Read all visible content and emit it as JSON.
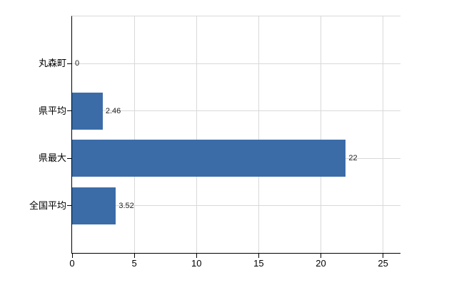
{
  "chart_data": {
    "type": "bar",
    "orientation": "horizontal",
    "title": "",
    "xlabel": "",
    "ylabel": "",
    "categories": [
      "丸森町",
      "県平均",
      "県最大",
      "全国平均"
    ],
    "values": [
      0,
      2.46,
      22,
      3.52
    ],
    "value_labels": [
      "0",
      "2.46",
      "22",
      "3.52"
    ],
    "x_ticks": [
      0,
      5,
      10,
      15,
      20,
      25
    ],
    "x_tick_labels": [
      "0",
      "5",
      "10",
      "15",
      "20",
      "25"
    ],
    "xlim": [
      0,
      26.4
    ],
    "grid": true,
    "legend": false,
    "colors": {
      "bar": "#3b6ca8",
      "grid": "#d9d9d9",
      "axis": "#000000",
      "text": "#000000",
      "value_text": "#222222",
      "background": "#ffffff"
    }
  }
}
